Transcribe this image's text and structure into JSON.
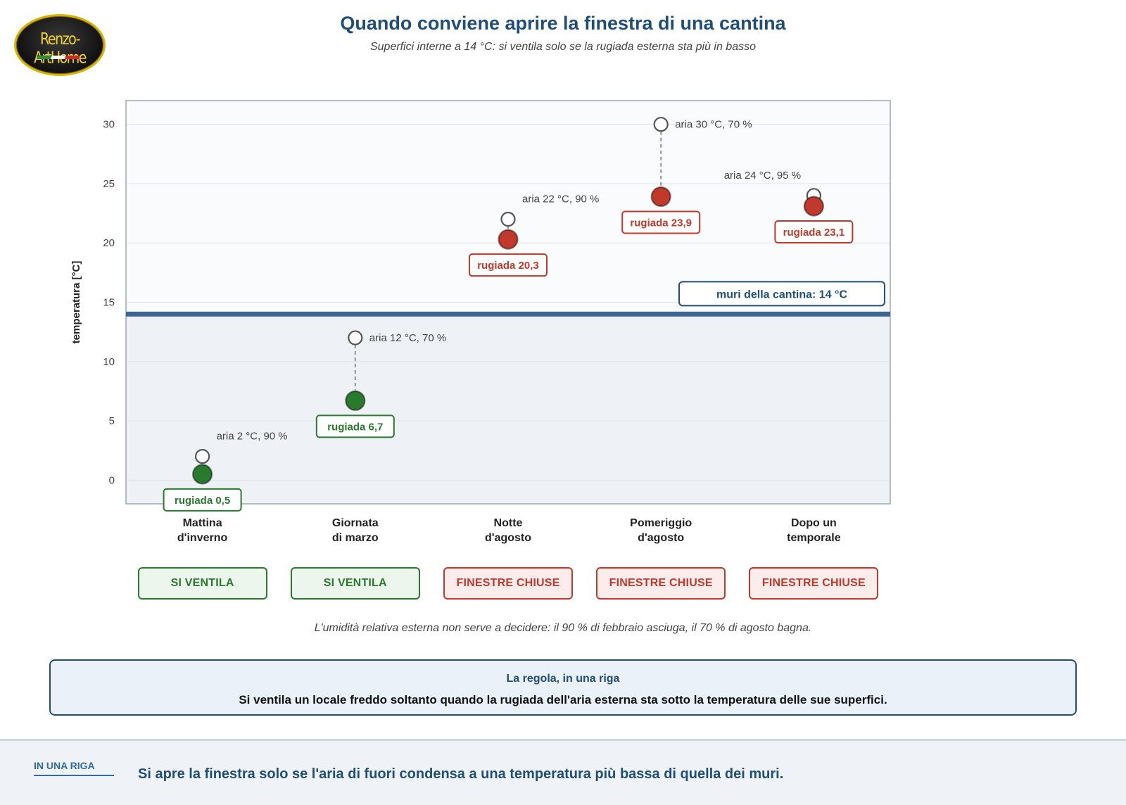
{
  "logo": {
    "text": "Renzo-ArtHome"
  },
  "header": {
    "title": "Quando conviene aprire la finestra di una cantina",
    "subtitle": "Superfici interne a 14 °C: si ventila solo se la rugiada esterna sta più in basso"
  },
  "chart_data": {
    "type": "scatter",
    "ylabel": "temperatura [°C]",
    "ylim": [
      -2,
      32
    ],
    "yticks": [
      0,
      5,
      10,
      15,
      20,
      25,
      30
    ],
    "grid": true,
    "threshold": {
      "value": 14,
      "label": "muri della cantina: 14 °C"
    },
    "categories": [
      {
        "line1": "Mattina",
        "line2": "d'inverno"
      },
      {
        "line1": "Giornata",
        "line2": "di marzo"
      },
      {
        "line1": "Notte",
        "line2": "d'agosto"
      },
      {
        "line1": "Pomeriggio",
        "line2": "d'agosto"
      },
      {
        "line1": "Dopo un",
        "line2": "temporale"
      }
    ],
    "series": [
      {
        "name": "aria",
        "values": [
          2,
          12,
          22,
          30,
          24
        ]
      },
      {
        "name": "rugiada",
        "values": [
          0.5,
          6.7,
          20.3,
          23.9,
          23.1
        ]
      }
    ],
    "air_labels": [
      "aria 2 °C, 90 %",
      "aria 12 °C, 70 %",
      "aria 22 °C, 90 %",
      "aria 30 °C, 70 %",
      "aria 24 °C, 95 %"
    ],
    "dew_labels": [
      "rugiada 0,5",
      "rugiada 6,7",
      "rugiada 20,3",
      "rugiada 23,9",
      "rugiada 23,1"
    ],
    "verdicts": [
      "ventila",
      "ventila",
      "chiuse",
      "chiuse",
      "chiuse"
    ],
    "colors": {
      "ventila": "#2a7a2e",
      "chiuse": "#c0392b",
      "threshold": "#3c6591",
      "above_bg": "#f9fbfd",
      "below_bg": "#eef2f6"
    }
  },
  "decisions": [
    "SI VENTILA",
    "SI VENTILA",
    "FINESTRE CHIUSE",
    "FINESTRE CHIUSE",
    "FINESTRE CHIUSE"
  ],
  "note": "L'umidità relativa esterna non serve a decidere: il 90 % di febbraio asciuga, il 70 % di agosto bagna.",
  "rule": {
    "heading": "La regola, in una riga",
    "text": "Si ventila un locale freddo soltanto quando la rugiada dell'aria esterna sta sotto la temperatura delle sue superfici."
  },
  "footer": {
    "tag": "IN UNA RIGA",
    "text": "Si apre la finestra solo se l'aria di fuori condensa a una temperatura più bassa di quella dei muri."
  }
}
